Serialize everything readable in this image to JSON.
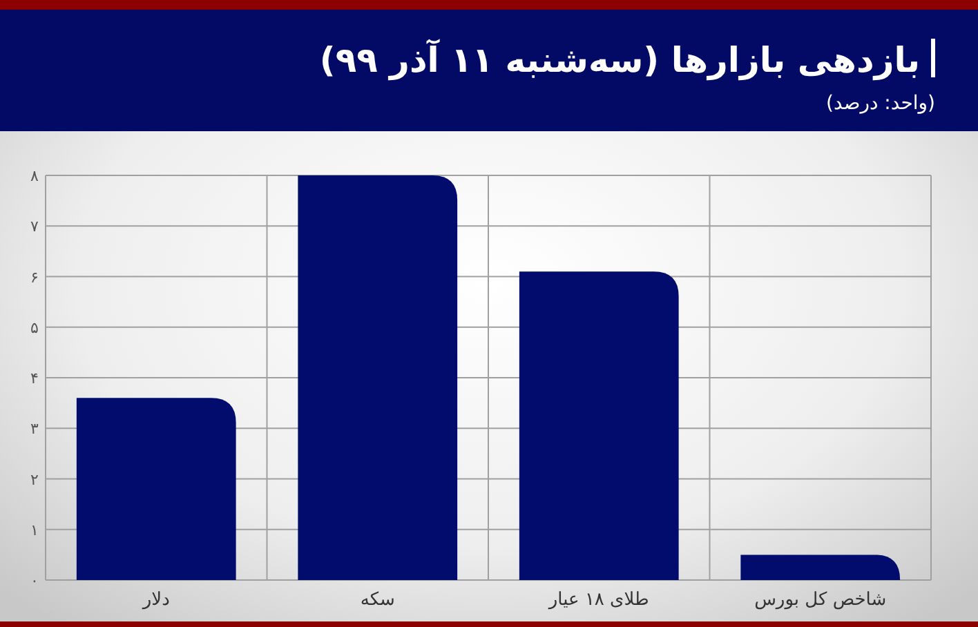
{
  "chart_data": {
    "type": "bar",
    "title": "بازدهی بازارها (سه‌شنبه ۱۱ آذر ۹۹)",
    "subtitle": "(واحد: درصد)",
    "categories": [
      "دلار",
      "سکه",
      "طلای ۱۸ عیار",
      "شاخص کل بورس"
    ],
    "values": [
      3.6,
      8,
      6.1,
      0.5
    ],
    "color": "#020c6c",
    "ylim": [
      0,
      8
    ],
    "yticks": [
      {
        "value": 0,
        "label": "۰"
      },
      {
        "value": 1,
        "label": "۱"
      },
      {
        "value": 2,
        "label": "۲"
      },
      {
        "value": 3,
        "label": "۳"
      },
      {
        "value": 4,
        "label": "۴"
      },
      {
        "value": 5,
        "label": "۵"
      },
      {
        "value": 6,
        "label": "۶"
      },
      {
        "value": 7,
        "label": "۷"
      },
      {
        "value": 8,
        "label": "۸"
      }
    ],
    "grid": true
  }
}
